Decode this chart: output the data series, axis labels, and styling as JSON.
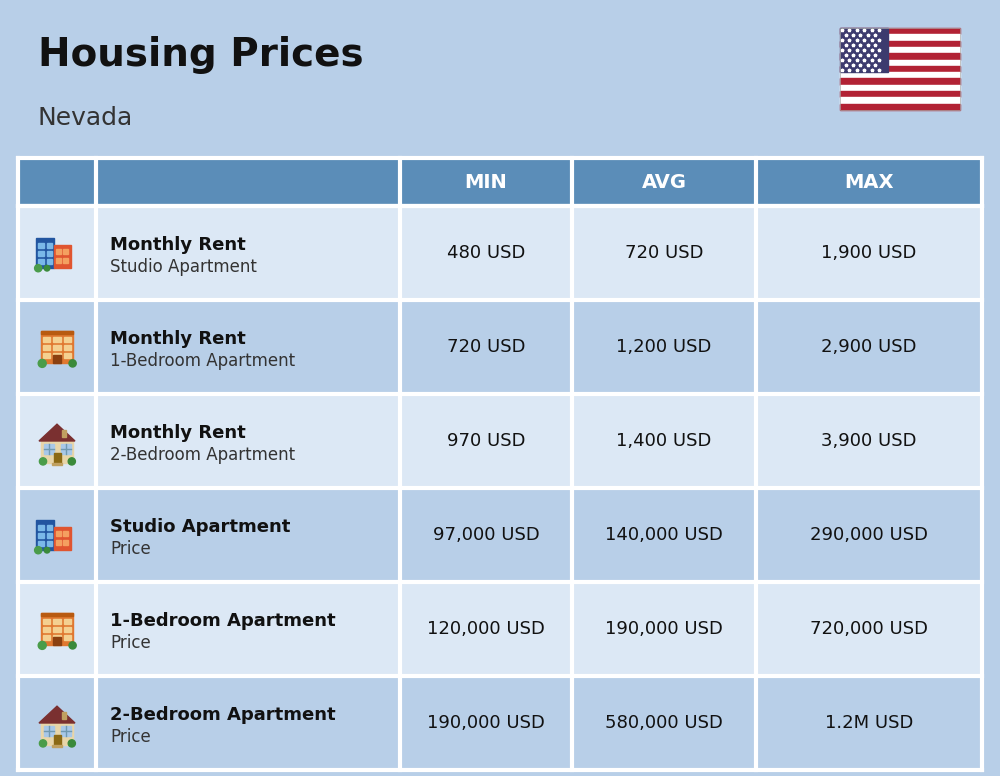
{
  "title": "Housing Prices",
  "subtitle": "Nevada",
  "background_color": "#b8cfe8",
  "header_color": "#5b8db8",
  "header_text_color": "#ffffff",
  "row_bg_white": "#dce8f5",
  "row_bg_blue": "#b8cfe8",
  "divider_color": "#ffffff",
  "col_headers": [
    "MIN",
    "AVG",
    "MAX"
  ],
  "rows": [
    {
      "bold_label": "Monthly Rent",
      "sub_label": "Studio Apartment",
      "min": "480 USD",
      "avg": "720 USD",
      "max": "1,900 USD",
      "icon_type": "blue_red"
    },
    {
      "bold_label": "Monthly Rent",
      "sub_label": "1-Bedroom Apartment",
      "min": "720 USD",
      "avg": "1,200 USD",
      "max": "2,900 USD",
      "icon_type": "orange"
    },
    {
      "bold_label": "Monthly Rent",
      "sub_label": "2-Bedroom Apartment",
      "min": "970 USD",
      "avg": "1,400 USD",
      "max": "3,900 USD",
      "icon_type": "beige"
    },
    {
      "bold_label": "Studio Apartment",
      "sub_label": "Price",
      "min": "97,000 USD",
      "avg": "140,000 USD",
      "max": "290,000 USD",
      "icon_type": "blue_red"
    },
    {
      "bold_label": "1-Bedroom Apartment",
      "sub_label": "Price",
      "min": "120,000 USD",
      "avg": "190,000 USD",
      "max": "720,000 USD",
      "icon_type": "orange"
    },
    {
      "bold_label": "2-Bedroom Apartment",
      "sub_label": "Price",
      "min": "190,000 USD",
      "avg": "580,000 USD",
      "max": "1.2M USD",
      "icon_type": "beige"
    }
  ],
  "title_fontsize": 28,
  "subtitle_fontsize": 18,
  "header_fontsize": 14,
  "cell_fontsize": 13,
  "label_bold_fontsize": 13,
  "label_sub_fontsize": 12
}
